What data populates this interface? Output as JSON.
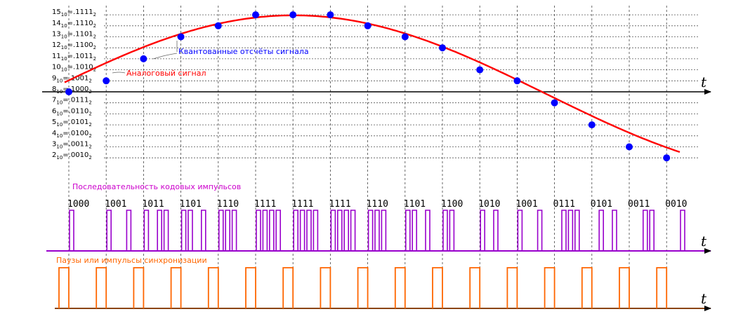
{
  "labels": {
    "samples": "Квантованные отсчёты сигнала",
    "analog": "Аналоговый сигнал",
    "code_sequence": "Последовательность кодовых импульсов",
    "sync": "Паузы или импульсы синхронизации",
    "axis_t": "t"
  },
  "colors": {
    "analog": "#ff0000",
    "samples": "#0000ff",
    "code": "#9900cc",
    "code_label": "#cc00cc",
    "sync": "#ff6600"
  },
  "levels": [
    {
      "dec": "15",
      "bin": "1111",
      "value": 15
    },
    {
      "dec": "14",
      "bin": "1110",
      "value": 14
    },
    {
      "dec": "13",
      "bin": "1101",
      "value": 13
    },
    {
      "dec": "12",
      "bin": "1100",
      "value": 12
    },
    {
      "dec": "11",
      "bin": "1011",
      "value": 11
    },
    {
      "dec": "10",
      "bin": "1010",
      "value": 10
    },
    {
      "dec": "9",
      "bin": "1001",
      "value": 9
    },
    {
      "dec": "8",
      "bin": "1000",
      "value": 8
    },
    {
      "dec": "7",
      "bin": "0111",
      "value": 7
    },
    {
      "dec": "6",
      "bin": "0110",
      "value": 6
    },
    {
      "dec": "5",
      "bin": "0101",
      "value": 5
    },
    {
      "dec": "4",
      "bin": "0100",
      "value": 4
    },
    {
      "dec": "3",
      "bin": "0011",
      "value": 3
    },
    {
      "dec": "2",
      "bin": "0010",
      "value": 2
    }
  ],
  "samples": [
    {
      "value": 8,
      "code": "1000"
    },
    {
      "value": 9,
      "code": "1001"
    },
    {
      "value": 11,
      "code": "1011"
    },
    {
      "value": 13,
      "code": "1101"
    },
    {
      "value": 14,
      "code": "1110"
    },
    {
      "value": 15,
      "code": "1111"
    },
    {
      "value": 15,
      "code": "1111"
    },
    {
      "value": 15,
      "code": "1111"
    },
    {
      "value": 14,
      "code": "1110"
    },
    {
      "value": 13,
      "code": "1101"
    },
    {
      "value": 12,
      "code": "1100"
    },
    {
      "value": 10,
      "code": "1010"
    },
    {
      "value": 9,
      "code": "1001"
    },
    {
      "value": 7,
      "code": "0111"
    },
    {
      "value": 5,
      "code": "0101"
    },
    {
      "value": 3,
      "code": "0011"
    },
    {
      "value": 2,
      "code": "0010"
    }
  ]
}
